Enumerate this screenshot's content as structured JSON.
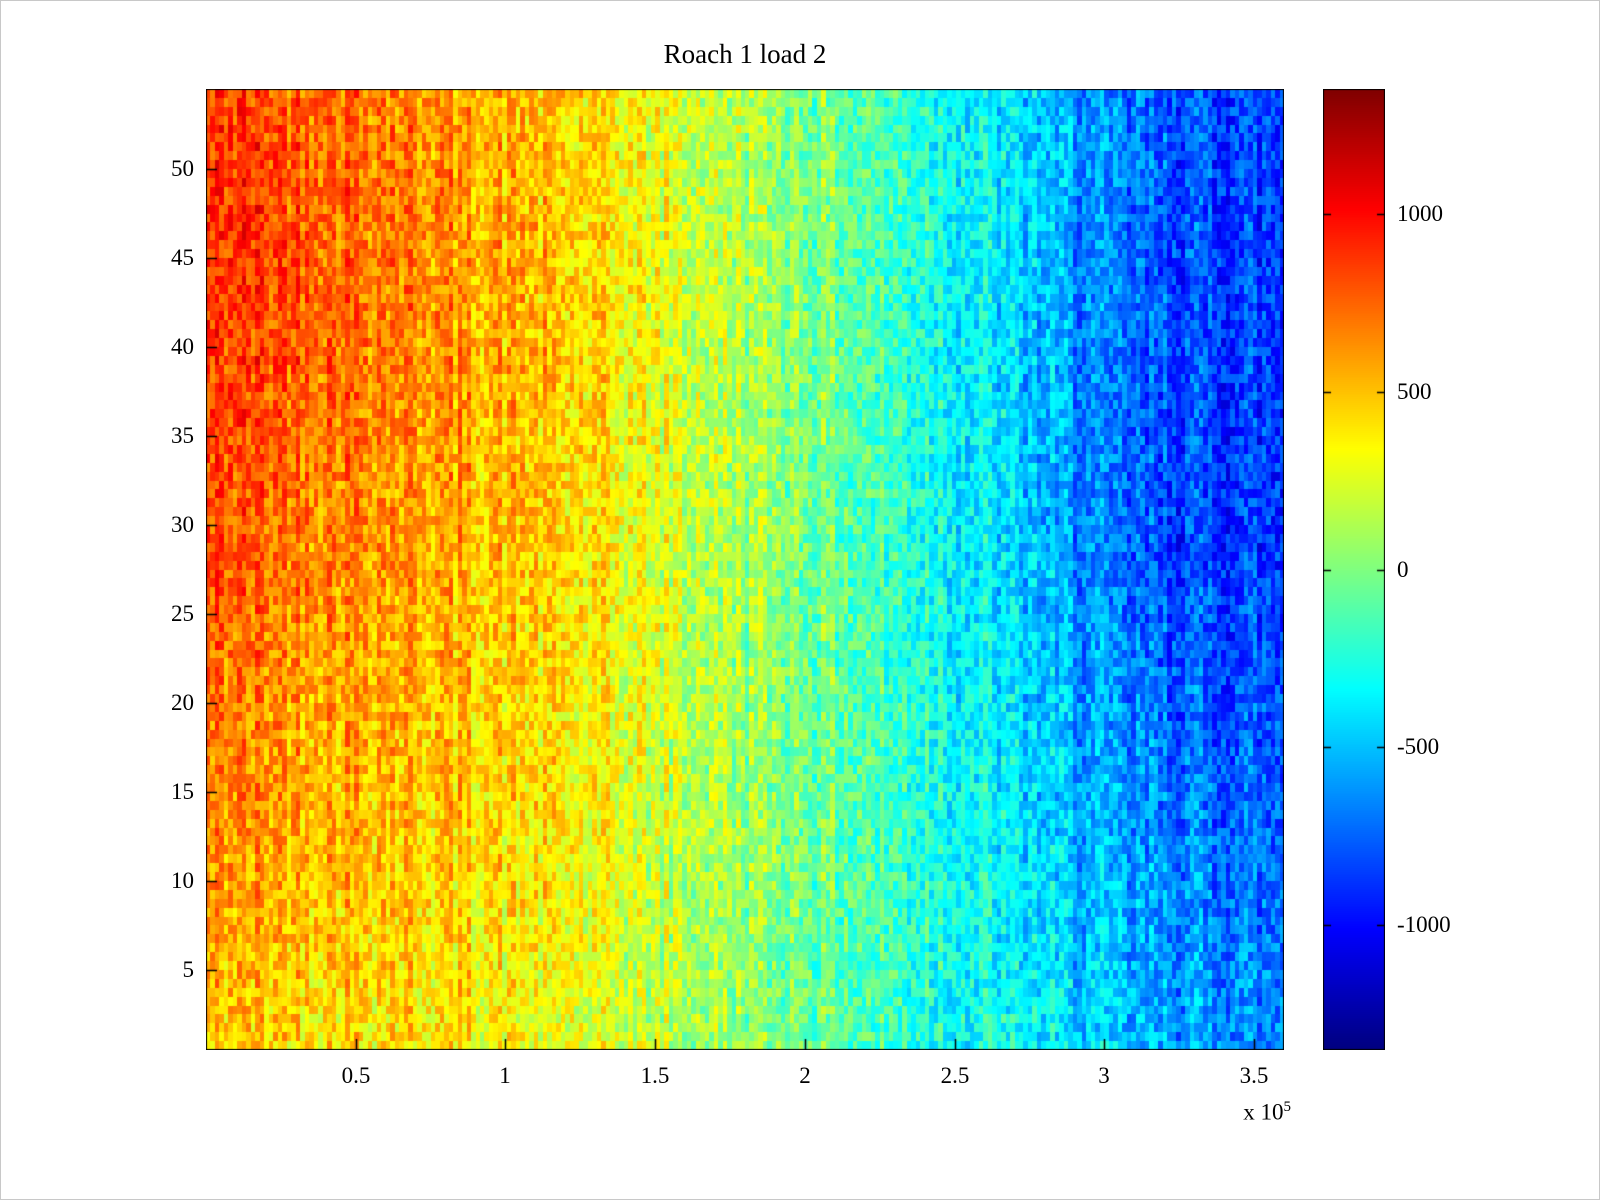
{
  "figure": {
    "background": "#ffffff",
    "axis_color": "#000000"
  },
  "chart_data": {
    "type": "heatmap",
    "title": "Roach 1 load 2",
    "x_axis": {
      "range_e5": [
        0,
        3.6
      ],
      "ticks_e5": [
        0.5,
        1,
        1.5,
        2,
        2.5,
        3,
        3.5
      ],
      "tick_labels": [
        "0.5",
        "1",
        "1.5",
        "2",
        "2.5",
        "3",
        "3.5"
      ],
      "multiplier_prefix": "x 10",
      "multiplier_exponent": "5"
    },
    "y_axis": {
      "range": [
        0.5,
        54.5
      ],
      "ticks": [
        5,
        10,
        15,
        20,
        25,
        30,
        35,
        40,
        45,
        50
      ],
      "tick_labels": [
        "5",
        "10",
        "15",
        "20",
        "25",
        "30",
        "35",
        "40",
        "45",
        "50"
      ]
    },
    "colorbar": {
      "range": [
        -1350,
        1350
      ],
      "ticks": [
        1000,
        500,
        0,
        -500,
        -1000
      ],
      "tick_labels": [
        "1000",
        "500",
        "0",
        "-500",
        "-1000"
      ],
      "colormap": "jet"
    },
    "values": {
      "description": "Coarse mean field read from the image (value at grid_x in units of 1e5, grid_y rows). Values fall from ~+850 (red/orange) at the left edge to ~-850 (blue) at the right edge; upper rows are warmer on the left and cooler on the right. Rendered with bilinear interpolation plus per-cell noise.",
      "grid_x_e5": [
        0.1,
        0.6,
        1.1,
        1.6,
        2.1,
        2.6,
        3.1,
        3.55
      ],
      "grid_y": [
        2,
        10,
        20,
        30,
        40,
        48,
        54
      ],
      "grid_values": [
        [
          500,
          420,
          320,
          120,
          -80,
          -320,
          -550,
          -650
        ],
        [
          600,
          500,
          380,
          150,
          -60,
          -330,
          -620,
          -720
        ],
        [
          680,
          560,
          430,
          180,
          -60,
          -360,
          -700,
          -800
        ],
        [
          780,
          640,
          480,
          200,
          -60,
          -400,
          -800,
          -880
        ],
        [
          850,
          700,
          520,
          230,
          -40,
          -380,
          -780,
          -860
        ],
        [
          880,
          720,
          520,
          230,
          -30,
          -360,
          -760,
          -850
        ],
        [
          850,
          700,
          500,
          220,
          -50,
          -350,
          -730,
          -830
        ]
      ],
      "noise_amplitude": 210,
      "column_noise_amplitude": 110,
      "n_cols": 240,
      "n_rows": 108
    }
  }
}
